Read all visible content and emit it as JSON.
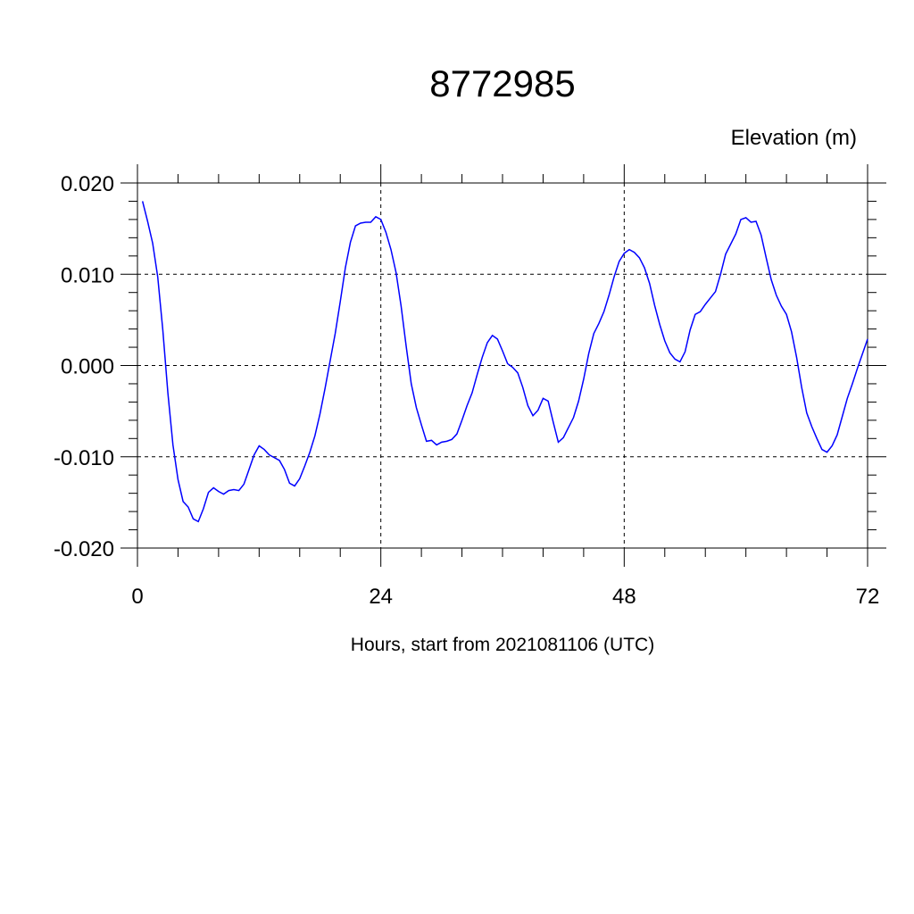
{
  "chart_data": {
    "type": "line",
    "title": "8772985",
    "y_axis_label": "Elevation (m)",
    "x_axis_label": "Hours, start from 2021081106 (UTC)",
    "xlim": [
      0,
      72
    ],
    "xticks": [
      0,
      24,
      48,
      72
    ],
    "xminorticks": [
      4,
      8,
      12,
      16,
      20,
      28,
      32,
      36,
      40,
      44,
      52,
      56,
      60,
      64,
      68
    ],
    "ylim": [
      -0.02,
      0.02
    ],
    "yticks": [
      {
        "value": -0.02,
        "label": "-0.020"
      },
      {
        "value": -0.01,
        "label": "-0.010"
      },
      {
        "value": 0,
        "label": "0.000"
      },
      {
        "value": 0.01,
        "label": "0.010"
      },
      {
        "value": 0.02,
        "label": "0.020"
      }
    ],
    "yminorticks": [
      -0.018,
      -0.016,
      -0.014,
      -0.012,
      -0.008,
      -0.006,
      -0.004,
      -0.002,
      0.002,
      0.004,
      0.006,
      0.008,
      0.012,
      0.014,
      0.016,
      0.018
    ],
    "grid": true,
    "x": [
      0.5,
      1,
      1.5,
      2,
      2.5,
      3,
      3.5,
      4,
      4.5,
      5,
      5.5,
      6,
      6.5,
      7,
      7.5,
      8,
      8.5,
      9,
      9.5,
      10,
      10.5,
      11,
      11.5,
      12,
      12.5,
      13,
      13.5,
      14,
      14.5,
      15,
      15.5,
      16,
      16.5,
      17,
      17.5,
      18,
      18.5,
      19,
      19.5,
      20,
      20.5,
      21,
      21.5,
      22,
      22.5,
      23,
      23.5,
      24,
      24.5,
      25,
      25.5,
      26,
      26.5,
      27,
      27.5,
      28,
      28.5,
      29,
      29.5,
      30,
      30.5,
      31,
      31.5,
      32,
      32.5,
      33,
      33.5,
      34,
      34.5,
      35,
      35.5,
      36,
      36.5,
      37,
      37.5,
      38,
      38.5,
      39,
      39.5,
      40,
      40.5,
      41,
      41.5,
      42,
      42.5,
      43,
      43.5,
      44,
      44.5,
      45,
      45.5,
      46,
      46.5,
      47,
      47.5,
      48,
      48.5,
      49,
      49.5,
      50,
      50.5,
      51,
      51.5,
      52,
      52.5,
      53,
      53.5,
      54,
      54.5,
      55,
      55.5,
      56,
      56.5,
      57,
      57.5,
      58,
      58.5,
      59,
      59.5,
      60,
      60.5,
      61,
      61.5,
      62,
      62.5,
      63,
      63.5,
      64,
      64.5,
      65,
      65.5,
      66,
      66.5,
      67,
      67.5,
      68,
      68.5,
      69,
      69.5,
      70,
      70.5,
      71,
      71.5,
      72
    ],
    "series": [
      {
        "color": "#0000ff",
        "values": [
          0.018,
          0.0158,
          0.0134,
          0.0097,
          0.0039,
          -0.003,
          -0.0087,
          -0.0125,
          -0.0149,
          -0.0155,
          -0.0168,
          -0.0171,
          -0.0157,
          -0.0139,
          -0.0134,
          -0.0138,
          -0.0141,
          -0.0137,
          -0.0136,
          -0.0137,
          -0.013,
          -0.0114,
          -0.0098,
          -0.0088,
          -0.0092,
          -0.0098,
          -0.0101,
          -0.0104,
          -0.0114,
          -0.0129,
          -0.0132,
          -0.0124,
          -0.011,
          -0.0095,
          -0.0077,
          -0.0053,
          -0.0025,
          0.0005,
          0.0035,
          0.007,
          0.0107,
          0.0135,
          0.0153,
          0.0156,
          0.0157,
          0.0157,
          0.0163,
          0.016,
          0.0146,
          0.0127,
          0.0102,
          0.0065,
          0.0021,
          -0.002,
          -0.0046,
          -0.0065,
          -0.0083,
          -0.0082,
          -0.0087,
          -0.0084,
          -0.0083,
          -0.0081,
          -0.0075,
          -0.006,
          -0.0044,
          -0.003,
          -0.001,
          0.0009,
          0.0025,
          0.0033,
          0.0029,
          0.0016,
          0.0002,
          -0.0002,
          -0.0008,
          -0.0024,
          -0.0044,
          -0.0055,
          -0.0049,
          -0.0036,
          -0.0039,
          -0.0062,
          -0.0084,
          -0.0079,
          -0.0068,
          -0.0057,
          -0.0039,
          -0.0015,
          0.0013,
          0.0035,
          0.0046,
          0.0059,
          0.0077,
          0.0097,
          0.0114,
          0.0123,
          0.0127,
          0.0124,
          0.0118,
          0.0107,
          0.009,
          0.0066,
          0.0045,
          0.0027,
          0.0014,
          0.0007,
          0.0004,
          0.0015,
          0.0039,
          0.0056,
          0.0059,
          0.0067,
          0.0074,
          0.0081,
          0.01,
          0.0122,
          0.0133,
          0.0144,
          0.016,
          0.0162,
          0.0157,
          0.0158,
          0.0143,
          0.0118,
          0.0094,
          0.0077,
          0.0065,
          0.0056,
          0.0037,
          0.0009,
          -0.0024,
          -0.0052,
          -0.0067,
          -0.008,
          -0.0092,
          -0.0095,
          -0.0088,
          -0.0076,
          -0.0056,
          -0.0036,
          -0.002,
          -0.0003,
          0.0013,
          0.0029
        ]
      }
    ]
  }
}
